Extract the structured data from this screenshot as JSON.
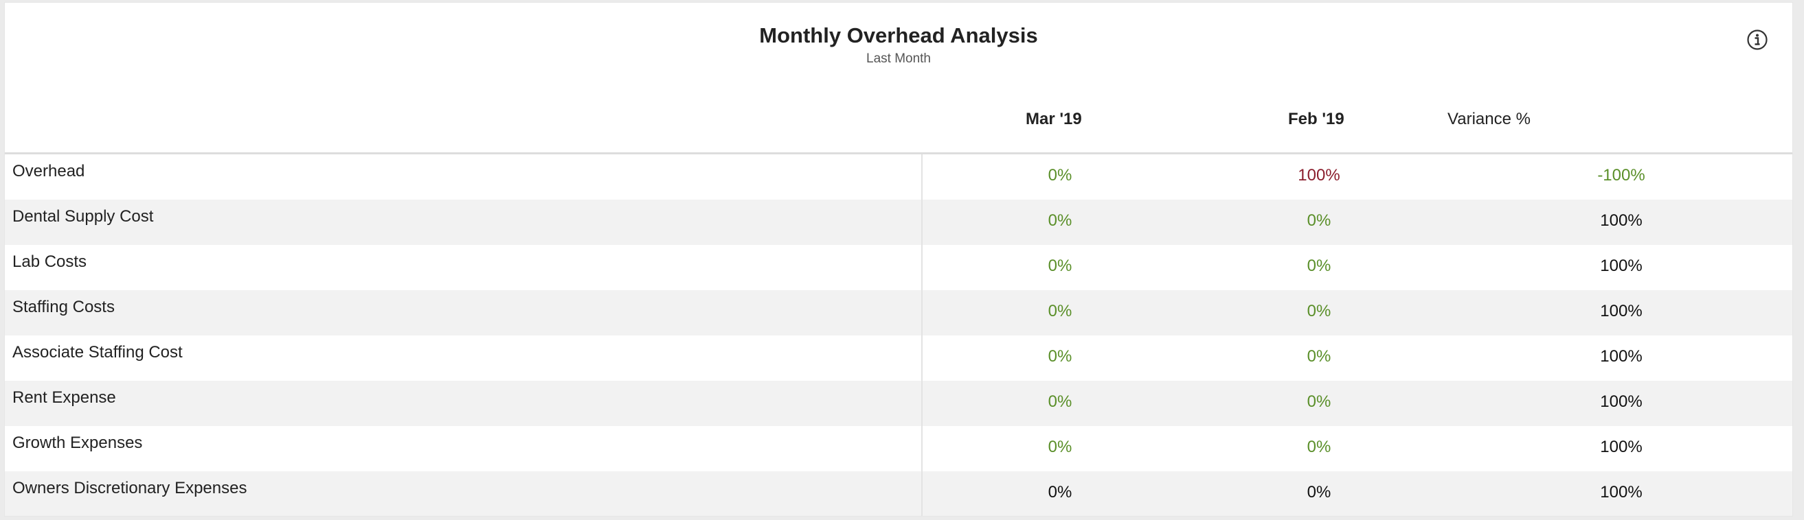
{
  "widget": {
    "title": "Monthly Overhead Analysis",
    "subtitle": "Last Month",
    "info_icon": "info-circle-icon"
  },
  "table": {
    "columns": [
      "",
      "Mar '19",
      "Feb '19",
      "Variance %"
    ],
    "rows": [
      {
        "label": "Overhead",
        "mar": "0%",
        "feb": "100%",
        "variance": "-100%",
        "mar_color": "#5a8f29",
        "feb_color": "#8b1e2d",
        "variance_color": "#5a8f29"
      },
      {
        "label": "Dental Supply Cost",
        "mar": "0%",
        "feb": "0%",
        "variance": "100%",
        "mar_color": "#5a8f29",
        "feb_color": "#5a8f29",
        "variance_color": "#111111"
      },
      {
        "label": "Lab Costs",
        "mar": "0%",
        "feb": "0%",
        "variance": "100%",
        "mar_color": "#5a8f29",
        "feb_color": "#5a8f29",
        "variance_color": "#111111"
      },
      {
        "label": "Staffing Costs",
        "mar": "0%",
        "feb": "0%",
        "variance": "100%",
        "mar_color": "#5a8f29",
        "feb_color": "#5a8f29",
        "variance_color": "#111111"
      },
      {
        "label": "Associate Staffing Cost",
        "mar": "0%",
        "feb": "0%",
        "variance": "100%",
        "mar_color": "#5a8f29",
        "feb_color": "#5a8f29",
        "variance_color": "#111111"
      },
      {
        "label": "Rent Expense",
        "mar": "0%",
        "feb": "0%",
        "variance": "100%",
        "mar_color": "#5a8f29",
        "feb_color": "#5a8f29",
        "variance_color": "#111111"
      },
      {
        "label": "Growth Expenses",
        "mar": "0%",
        "feb": "0%",
        "variance": "100%",
        "mar_color": "#5a8f29",
        "feb_color": "#5a8f29",
        "variance_color": "#111111"
      },
      {
        "label": "Owners Discretionary Expenses",
        "mar": "0%",
        "feb": "0%",
        "variance": "100%",
        "mar_color": "#111111",
        "feb_color": "#111111",
        "variance_color": "#111111"
      }
    ]
  }
}
